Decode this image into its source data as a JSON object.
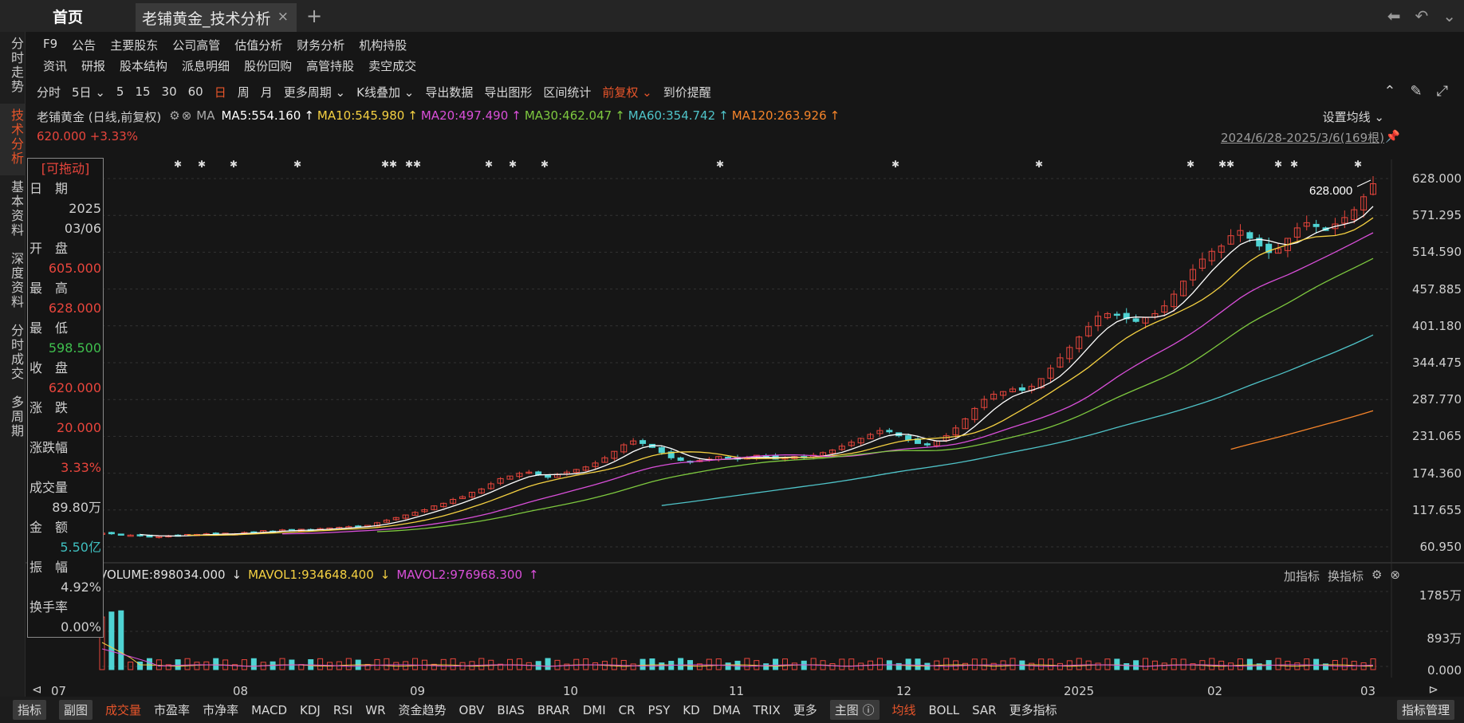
{
  "tabs": {
    "home": "首页",
    "stock": "老铺黄金_技术分析",
    "close": "×",
    "add": "+"
  },
  "left_nav": [
    {
      "label": "分时走势",
      "active": false
    },
    {
      "label": "技术分析",
      "active": true
    },
    {
      "label": "基本资料",
      "active": false
    },
    {
      "label": "深度资料",
      "active": false
    },
    {
      "label": "分时成交",
      "active": false
    },
    {
      "label": "多周期",
      "active": false
    }
  ],
  "menu": {
    "row1": [
      "F9",
      "公告",
      "主要股东",
      "公司高管",
      "估值分析",
      "财务分析",
      "机构持股"
    ],
    "row2": [
      "资讯",
      "研报",
      "股本结构",
      "派息明细",
      "股份回购",
      "高管持股",
      "卖空成交"
    ]
  },
  "toolbar": {
    "items": [
      "分时",
      "5日 ⌄",
      "5",
      "15",
      "30",
      "60",
      "日",
      "周",
      "月",
      "更多周期 ⌄",
      "K线叠加 ⌄",
      "导出数据",
      "导出图形",
      "区间统计",
      "前复权 ⌄",
      "到价提醒"
    ],
    "active_index": 6,
    "orange_index": 14
  },
  "info": {
    "stock_label": "老铺黄金 (日线,前复权)",
    "ma_prefix": "MA",
    "ma5": "MA5:554.160",
    "ma10": "MA10:545.980",
    "ma20": "MA20:497.490",
    "ma30": "MA30:462.047",
    "ma60": "MA60:354.742",
    "ma120": "MA120:263.926",
    "settings": "设置均线 ⌄",
    "price": "620.000 +3.33%",
    "range": "2024/6/28-2025/3/6(169根)"
  },
  "data_window": {
    "title": "[可拖动]",
    "rows": [
      {
        "label": "日　期",
        "value": ""
      },
      {
        "label": "",
        "value": "2025"
      },
      {
        "label": "",
        "value": "03/06"
      },
      {
        "label": "开　盘",
        "value": ""
      },
      {
        "label": "",
        "value": "605.000",
        "color": "#e8453c"
      },
      {
        "label": "最　高",
        "value": ""
      },
      {
        "label": "",
        "value": "628.000",
        "color": "#e8453c"
      },
      {
        "label": "最　低",
        "value": ""
      },
      {
        "label": "",
        "value": "598.500",
        "color": "#3fbf4e"
      },
      {
        "label": "收　盘",
        "value": ""
      },
      {
        "label": "",
        "value": "620.000",
        "color": "#e8453c"
      },
      {
        "label": "涨　跌",
        "value": ""
      },
      {
        "label": "",
        "value": "20.000",
        "color": "#e8453c"
      },
      {
        "label": "涨跌幅",
        "value": ""
      },
      {
        "label": "",
        "value": "3.33%",
        "color": "#e8453c"
      },
      {
        "label": "成交量",
        "value": ""
      },
      {
        "label": "",
        "value": "89.80万"
      },
      {
        "label": "金　额",
        "value": ""
      },
      {
        "label": "",
        "value": "5.50亿",
        "color": "#3fbfbf"
      },
      {
        "label": "振　幅",
        "value": ""
      },
      {
        "label": "",
        "value": "4.92%"
      },
      {
        "label": "换手率",
        "value": ""
      },
      {
        "label": "",
        "value": "0.00%"
      }
    ]
  },
  "y_axis": [
    "628.000",
    "571.295",
    "514.590",
    "457.885",
    "401.180",
    "344.475",
    "287.770",
    "231.065",
    "174.360",
    "117.655",
    "60.950"
  ],
  "high_marker": "628.000",
  "volume": {
    "volume": "VOLUME:898034.000",
    "mavol1": "MAVOL1:934648.400",
    "mavol2": "MAVOL2:976968.300",
    "add_ind": "加指标",
    "swap_ind": "换指标",
    "y_axis": [
      "1785万",
      "893万",
      "0.000"
    ]
  },
  "x_axis": [
    "07",
    "08",
    "09",
    "10",
    "11",
    "12",
    "2025",
    "02",
    "03"
  ],
  "bottom_bar": [
    "指标",
    "副图",
    "成交量",
    "市盈率",
    "市净率",
    "MACD",
    "KDJ",
    "RSI",
    "WR",
    "资金趋势",
    "OBV",
    "BIAS",
    "BRAR",
    "DMI",
    "CR",
    "PSY",
    "KD",
    "DMA",
    "TRIX",
    "更多",
    "主图 ⓘ",
    "均线",
    "BOLL",
    "SAR",
    "更多指标"
  ],
  "bottom_right": "指标管理",
  "chart_data": {
    "type": "candlestick",
    "title": "老铺黄金 (日线,前复权)",
    "x_range": [
      "2024/6/28",
      "2025/3/6"
    ],
    "ylim": [
      60.95,
      628.0
    ],
    "y_ticks": [
      628.0,
      571.295,
      514.59,
      457.885,
      401.18,
      344.475,
      287.77,
      231.065,
      174.36,
      117.655,
      60.95
    ],
    "last_candle": {
      "date": "2025/03/06",
      "open": 605.0,
      "high": 628.0,
      "low": 598.5,
      "close": 620.0,
      "change": 20.0,
      "pct": "3.33%"
    },
    "close_series": [
      82,
      81,
      80,
      79,
      78,
      76,
      77,
      78,
      79,
      80,
      80,
      81,
      80,
      82,
      81,
      83,
      84,
      86,
      85,
      87,
      86,
      88,
      87,
      89,
      90,
      91,
      92,
      93,
      94,
      98,
      102,
      106,
      110,
      114,
      118,
      124,
      128,
      134,
      138,
      145,
      150,
      158,
      166,
      170,
      174,
      176,
      172,
      168,
      172,
      176,
      180,
      184,
      190,
      198,
      208,
      218,
      224,
      220,
      214,
      206,
      198,
      194,
      192,
      194,
      196,
      200,
      198,
      196,
      198,
      202,
      200,
      196,
      198,
      200,
      198,
      202,
      206,
      210,
      216,
      222,
      228,
      234,
      240,
      238,
      232,
      226,
      220,
      218,
      224,
      232,
      244,
      258,
      274,
      288,
      296,
      300,
      304,
      302,
      308,
      320,
      336,
      352,
      368,
      384,
      400,
      416,
      420,
      418,
      412,
      408,
      414,
      420,
      432,
      450,
      470,
      488,
      504,
      516,
      524,
      540,
      548,
      536,
      524,
      514,
      520,
      536,
      552,
      560,
      554,
      548,
      558,
      568,
      580,
      600,
      620
    ],
    "series": [
      {
        "name": "MA5",
        "value": 554.16,
        "color": "#ffffff"
      },
      {
        "name": "MA10",
        "value": 545.98,
        "color": "#f5d142"
      },
      {
        "name": "MA20",
        "value": 497.49,
        "color": "#d94fd9"
      },
      {
        "name": "MA30",
        "value": 462.047,
        "color": "#7ec93f"
      },
      {
        "name": "MA60",
        "value": 354.742,
        "color": "#4fc3c8"
      },
      {
        "name": "MA120",
        "value": 263.926,
        "color": "#f5842a"
      }
    ],
    "volume": {
      "VOLUME": 898034.0,
      "MAVOL1": 934648.4,
      "MAVOL2": 976968.3,
      "ylim": [
        0,
        17850000
      ]
    }
  }
}
